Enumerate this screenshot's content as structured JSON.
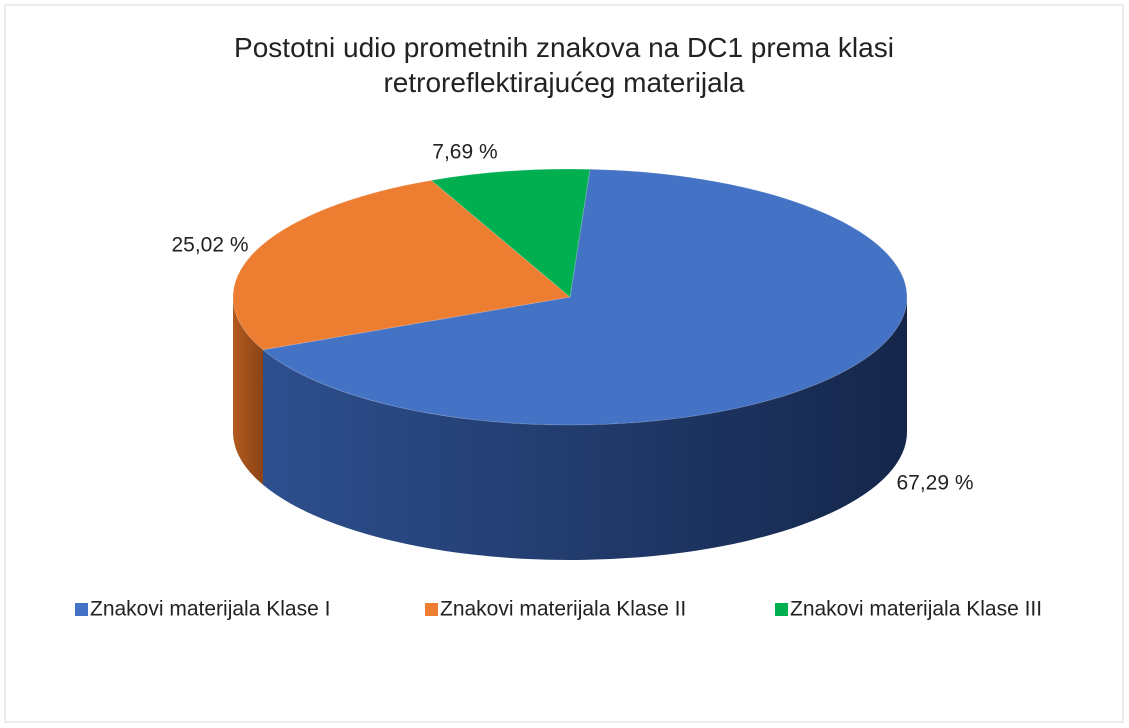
{
  "chart_data": {
    "type": "pie3d",
    "title": "Postotni udio prometnih znakova na DC1 prema klasi retroreflektirajućeg materijala",
    "categories": [
      "Znakovi materijala Klase I",
      "Znakovi materijala Klase II",
      "Znakovi materijala Klase III"
    ],
    "values": [
      67.29,
      25.02,
      7.69
    ],
    "value_labels": [
      "67,29 %",
      "25,02 %",
      "7,69 %"
    ],
    "colors": [
      "#4472c4",
      "#ed7d31",
      "#00b050"
    ],
    "legend": "bottom"
  }
}
